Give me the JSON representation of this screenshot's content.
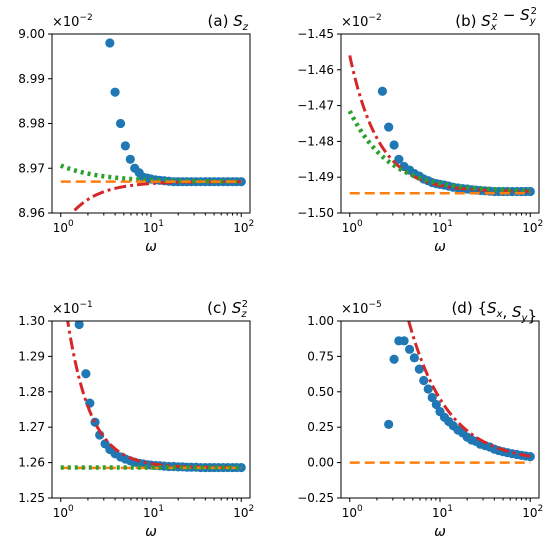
{
  "chart_data": [
    {
      "type": "scatter",
      "title": "(a) S_z",
      "xlabel": "ω",
      "xscale": "log",
      "xlim": [
        0.8,
        125
      ],
      "ylim": [
        0.0896,
        0.09
      ],
      "y_multiplier": "×10^-2",
      "yticks": [
        0.0896,
        0.0897,
        0.0898,
        0.0899,
        0.09
      ],
      "yticklabels": [
        "8.96",
        "8.97",
        "8.98",
        "8.99",
        "9.00"
      ],
      "xticks": [
        1,
        10,
        100
      ],
      "xticklabels": [
        "10^0",
        "10^1",
        "10^2"
      ],
      "series": [
        {
          "style": "dots",
          "color": "#1f77b4",
          "x": [
            3.5,
            4.0,
            4.6,
            5.2,
            5.9,
            6.6,
            7.4,
            8.2,
            9.1,
            10,
            11.2,
            12.5,
            14,
            15.8,
            17.8,
            20,
            22.4,
            25,
            28,
            31.6,
            35.5,
            40,
            44.7,
            50,
            56,
            63,
            71,
            80,
            89,
            100
          ],
          "y": [
            0.08998,
            0.08987,
            0.0898,
            0.08975,
            0.08972,
            0.0897,
            0.08969,
            0.08968,
            0.089678,
            0.089676,
            0.089674,
            0.089673,
            0.089672,
            0.089671,
            0.08967,
            0.08967,
            0.08967,
            0.08967,
            0.08967,
            0.08967,
            0.08967,
            0.08967,
            0.08967,
            0.08967,
            0.08967,
            0.08967,
            0.08967,
            0.08967,
            0.08967,
            0.08967
          ]
        },
        {
          "style": "dashdot",
          "color": "#d62728",
          "formula": "asym_neg",
          "c": 0.08967,
          "a": 0.000105,
          "p": 1.4,
          "xmin": 1,
          "xmax": 100
        },
        {
          "style": "dotted",
          "color": "#2ca02c",
          "formula": "asym_pos",
          "c": 0.08967,
          "a": 3.6e-05,
          "p": 1.0,
          "xmin": 1,
          "xmax": 100
        },
        {
          "style": "dashed",
          "color": "#ff7f0e",
          "formula": "const",
          "c": 0.08967,
          "xmin": 1,
          "xmax": 100
        }
      ]
    },
    {
      "type": "scatter",
      "title": "(b) S_x^2 − S_y^2",
      "xlabel": "ω",
      "xscale": "log",
      "xlim": [
        0.8,
        125
      ],
      "ylim": [
        -0.015,
        -0.0145
      ],
      "y_multiplier": "×10^-2",
      "yticks": [
        -0.015,
        -0.0149,
        -0.0148,
        -0.0147,
        -0.0146,
        -0.0145
      ],
      "yticklabels": [
        "−1.50",
        "−1.49",
        "−1.48",
        "−1.47",
        "−1.46",
        "−1.45"
      ],
      "xticks": [
        1,
        10,
        100
      ],
      "xticklabels": [
        "10^0",
        "10^1",
        "10^2"
      ],
      "series": [
        {
          "style": "dots",
          "color": "#1f77b4",
          "x": [
            2.3,
            2.7,
            3.1,
            3.5,
            4.0,
            4.6,
            5.2,
            5.9,
            6.6,
            7.4,
            8.2,
            9.1,
            10,
            11.2,
            12.5,
            14,
            15.8,
            17.8,
            20,
            22.4,
            25,
            28,
            31.6,
            35.5,
            40,
            44.7,
            50,
            56,
            63,
            71,
            80,
            89,
            100
          ],
          "y": [
            -0.01466,
            -0.01476,
            -0.01481,
            -0.01485,
            -0.01487,
            -0.01488,
            -0.01489,
            -0.014897,
            -0.014905,
            -0.01491,
            -0.014915,
            -0.014918,
            -0.01492,
            -0.014922,
            -0.014925,
            -0.014928,
            -0.01493,
            -0.014932,
            -0.014933,
            -0.014935,
            -0.014936,
            -0.014937,
            -0.014938,
            -0.014939,
            -0.01494,
            -0.01494,
            -0.01494,
            -0.01494,
            -0.01494,
            -0.01494,
            -0.01494,
            -0.01494,
            -0.01494
          ]
        },
        {
          "style": "dashdot",
          "color": "#d62728",
          "formula": "asym_pos",
          "c": -0.01494,
          "a": 0.00038,
          "p": 1.35,
          "xmin": 1,
          "xmax": 100
        },
        {
          "style": "dotted",
          "color": "#2ca02c",
          "formula": "asym_pos",
          "c": -0.01494,
          "a": 0.000225,
          "p": 1.0,
          "xmin": 1,
          "xmax": 100
        },
        {
          "style": "dashed",
          "color": "#ff7f0e",
          "formula": "const",
          "c": -0.014945,
          "xmin": 1,
          "xmax": 100
        }
      ]
    },
    {
      "type": "scatter",
      "title": "(c) S_z^2",
      "xlabel": "ω",
      "xscale": "log",
      "xlim": [
        0.8,
        125
      ],
      "ylim": [
        0.125,
        0.13
      ],
      "y_multiplier": "×10^-1",
      "yticks": [
        0.125,
        0.126,
        0.127,
        0.128,
        0.129,
        0.13
      ],
      "yticklabels": [
        "1.25",
        "1.26",
        "1.27",
        "1.28",
        "1.29",
        "1.30"
      ],
      "xticks": [
        1,
        10,
        100
      ],
      "xticklabels": [
        "10^0",
        "10^1",
        "10^2"
      ],
      "series": [
        {
          "style": "dots",
          "color": "#1f77b4",
          "x": [
            1.6,
            1.9,
            2.1,
            2.4,
            2.7,
            3.1,
            3.5,
            4.0,
            4.6,
            5.2,
            5.9,
            6.6,
            7.4,
            8.2,
            9.1,
            10,
            11.2,
            12.5,
            14,
            15.8,
            17.8,
            20,
            22.4,
            25,
            28,
            31.6,
            35.5,
            40,
            44.7,
            50,
            56,
            63,
            71,
            80,
            89,
            100
          ],
          "y": [
            0.1299,
            0.12851,
            0.12768,
            0.12714,
            0.12678,
            0.12653,
            0.12637,
            0.12625,
            0.12616,
            0.1261,
            0.12605,
            0.12601,
            0.12598,
            0.12596,
            0.12594,
            0.12593,
            0.12592,
            0.12591,
            0.1259,
            0.12589,
            0.12589,
            0.12588,
            0.12588,
            0.12587,
            0.12587,
            0.12587,
            0.12586,
            0.12586,
            0.12586,
            0.12586,
            0.12586,
            0.12586,
            0.12586,
            0.12586,
            0.12586,
            0.12586
          ]
        },
        {
          "style": "dashdot",
          "color": "#d62728",
          "formula": "asym_pos",
          "c": 0.12586,
          "a": 0.0056,
          "p": 1.7,
          "xmin": 1,
          "xmax": 100
        },
        {
          "style": "dashed",
          "color": "#ff7f0e",
          "formula": "const",
          "c": 0.12585,
          "xmin": 1,
          "xmax": 100
        },
        {
          "style": "dotted",
          "color": "#2ca02c",
          "formula": "const",
          "c": 0.12586,
          "xmin": 1,
          "xmax": 100
        }
      ]
    },
    {
      "type": "scatter",
      "title": "(d) {S_x, S_y}",
      "xlabel": "ω",
      "xscale": "log",
      "xlim": [
        0.8,
        125
      ],
      "ylim": [
        -2.5e-06,
        1e-05
      ],
      "y_multiplier": "×10^-5",
      "yticks": [
        -2.5e-06,
        0,
        2.5e-06,
        5e-06,
        7.5e-06,
        1e-05
      ],
      "yticklabels": [
        "−0.25",
        "0.00",
        "0.25",
        "0.50",
        "0.75",
        "1.00"
      ],
      "xticks": [
        1,
        10,
        100
      ],
      "xticklabels": [
        "10^0",
        "10^1",
        "10^2"
      ],
      "series": [
        {
          "style": "dots",
          "color": "#1f77b4",
          "x": [
            2.7,
            3.1,
            3.5,
            4.0,
            4.6,
            5.2,
            5.9,
            6.6,
            7.4,
            8.2,
            9.1,
            10,
            11.2,
            12.5,
            14,
            15.8,
            17.8,
            20,
            22.4,
            25,
            28,
            31.6,
            35.5,
            40,
            44.7,
            50,
            56,
            63,
            71,
            80,
            89,
            100
          ],
          "y": [
            2.7e-06,
            7.3e-06,
            8.6e-06,
            8.6e-06,
            8e-06,
            7.4e-06,
            6.6e-06,
            5.8e-06,
            5.2e-06,
            4.6e-06,
            4.1e-06,
            3.6e-06,
            3.2e-06,
            2.9e-06,
            2.6e-06,
            2.3e-06,
            2.1e-06,
            1.8e-06,
            1.6e-06,
            1.5e-06,
            1.3e-06,
            1.2e-06,
            1.1e-06,
            9.5e-07,
            8.5e-07,
            7.7e-07,
            7e-07,
            6.3e-07,
            5.7e-07,
            5.1e-07,
            4.7e-07,
            4.2e-07
          ]
        },
        {
          "style": "dashdot",
          "color": "#d62728",
          "formula": "asym_pos",
          "c": 0,
          "a": 4.5e-05,
          "p": 1.0,
          "xmin": 4.5,
          "xmax": 100
        },
        {
          "style": "dashed",
          "color": "#ff7f0e",
          "formula": "const",
          "c": 0,
          "xmin": 1,
          "xmax": 100
        }
      ]
    }
  ]
}
